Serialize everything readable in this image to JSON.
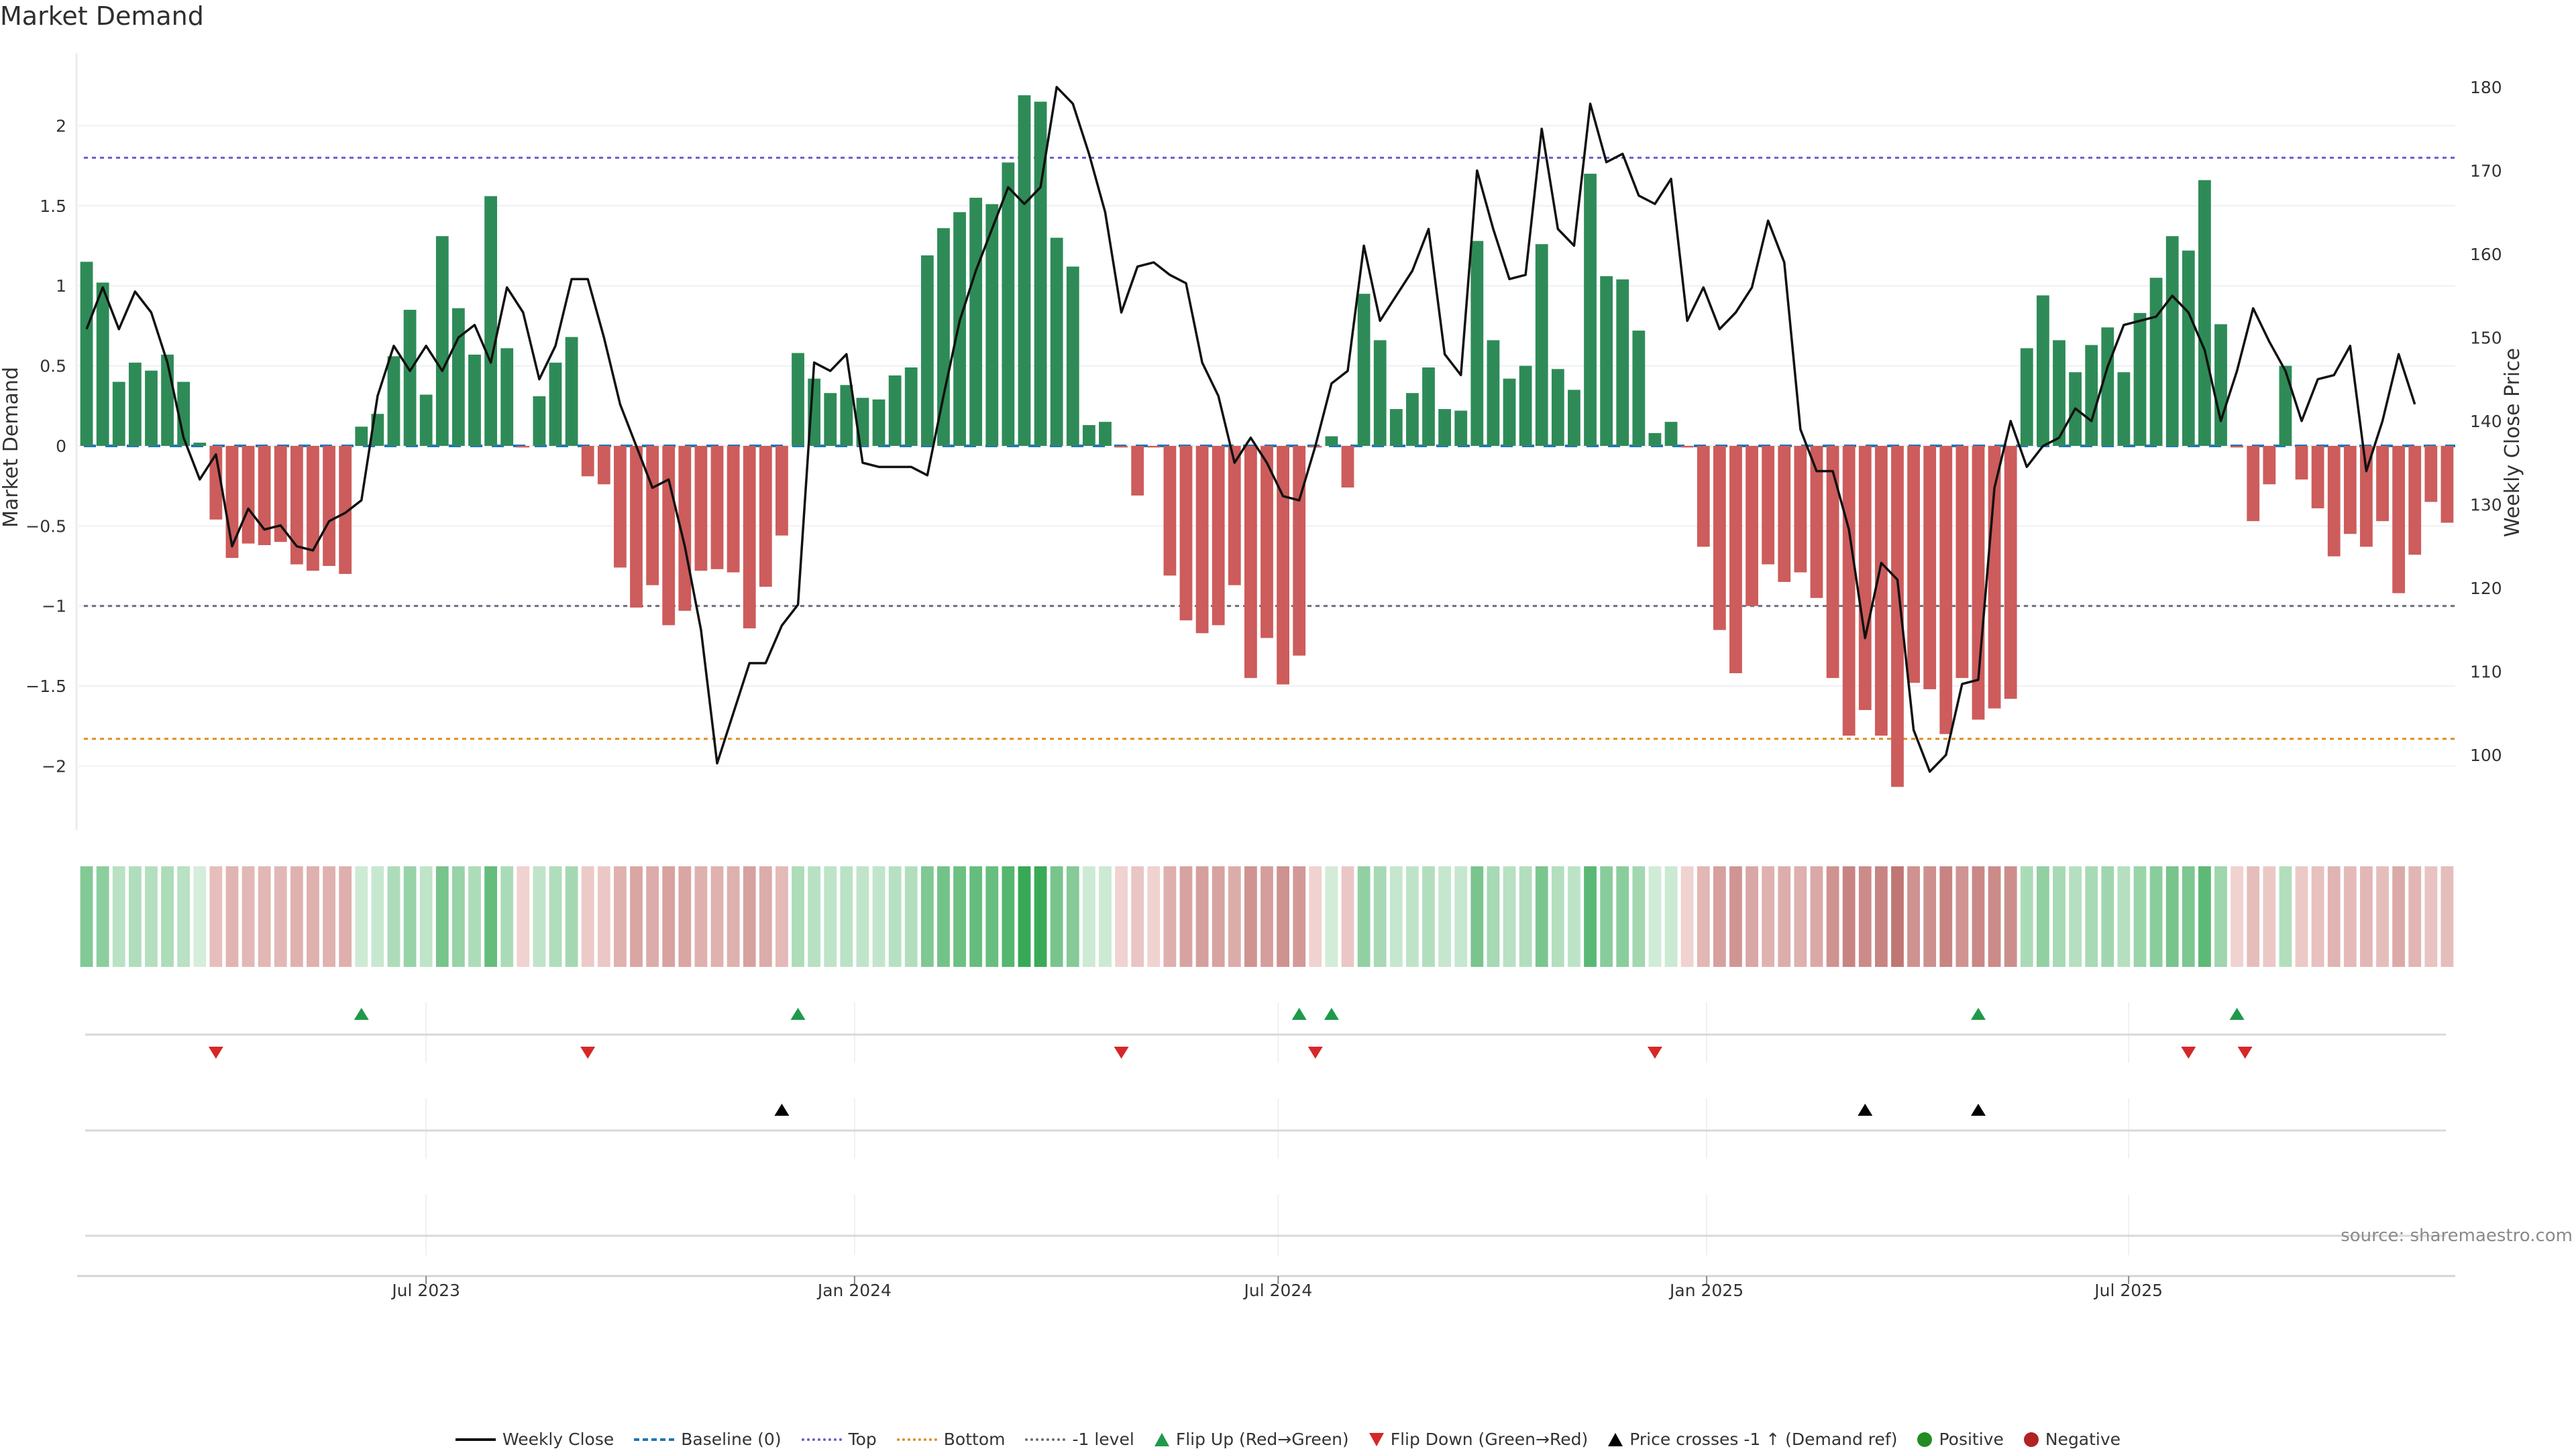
{
  "title": "Market Demand",
  "source": "source: sharemaestro.com",
  "colors": {
    "positive_bar": "#2e8b57",
    "negative_bar": "#cd5c5c",
    "price_line": "#111111",
    "baseline": "#1f77b4",
    "top": "#6a5acd",
    "bottom": "#e08a1e",
    "minus_one": "#6b6b7b",
    "flip_up": "#1f9a4a",
    "flip_down": "#d62728",
    "cross": "#000000",
    "positive_dot": "#228b22",
    "negative_dot": "#b22222"
  },
  "legend": [
    {
      "label": "Weekly Close",
      "kind": "line",
      "color_key": "price_line"
    },
    {
      "label": "Baseline (0)",
      "kind": "dash",
      "color_key": "baseline"
    },
    {
      "label": "Top",
      "kind": "dot",
      "color_key": "top"
    },
    {
      "label": "Bottom",
      "kind": "dot",
      "color_key": "bottom"
    },
    {
      "label": "-1 level",
      "kind": "dot",
      "color_key": "minus_one"
    },
    {
      "label": "Flip Up (Red→Green)",
      "kind": "tri-up",
      "color_key": "flip_up"
    },
    {
      "label": "Flip Down (Green→Red)",
      "kind": "tri-dn",
      "color_key": "flip_down"
    },
    {
      "label": "Price crosses -1 ↑ (Demand ref)",
      "kind": "tri-bk",
      "color_key": "cross"
    },
    {
      "label": "Positive",
      "kind": "circle",
      "color_key": "positive_dot"
    },
    {
      "label": "Negative",
      "kind": "circle",
      "color_key": "negative_dot"
    }
  ],
  "chart_data": {
    "type": "bar",
    "title": "Market Demand",
    "ylabel": "Market Demand",
    "y2label": "Weekly Close Price",
    "ylim": [
      -2.4,
      2.45
    ],
    "y2lim": [
      91,
      184
    ],
    "yticks": [
      "2",
      "1.5",
      "1",
      "0.5",
      "0",
      "−0.5",
      "−1",
      "−1.5",
      "−2"
    ],
    "ytick_values": [
      2,
      1.5,
      1,
      0.5,
      0,
      -0.5,
      -1,
      -1.5,
      -2
    ],
    "y2ticks": [
      "180",
      "170",
      "160",
      "150",
      "140",
      "130",
      "120",
      "110",
      "100"
    ],
    "y2tick_values": [
      180,
      170,
      160,
      150,
      140,
      130,
      120,
      110,
      100
    ],
    "xticks": [
      {
        "label": "Jul 2023",
        "week": 21.5
      },
      {
        "label": "Jan 2024",
        "week": 48
      },
      {
        "label": "Jul 2024",
        "week": 74.2
      },
      {
        "label": "Jan 2025",
        "week": 100.7
      },
      {
        "label": "Jul 2025",
        "week": 126.8
      }
    ],
    "reference_lines": {
      "baseline": 0,
      "top": 1.8,
      "bottom": -1.83,
      "minus_one": -1
    },
    "demand": [
      1.15,
      1.02,
      0.4,
      0.52,
      0.47,
      0.57,
      0.4,
      0.02,
      -0.46,
      -0.7,
      -0.61,
      -0.62,
      -0.6,
      -0.74,
      -0.78,
      -0.75,
      -0.8,
      0.12,
      0.2,
      0.56,
      0.85,
      0.32,
      1.31,
      0.86,
      0.57,
      1.56,
      0.61,
      -0.01,
      0.31,
      0.52,
      0.68,
      -0.19,
      -0.24,
      -0.76,
      -1.01,
      -0.87,
      -1.12,
      -1.03,
      -0.78,
      -0.77,
      -0.79,
      -1.14,
      -0.88,
      -0.56,
      0.58,
      0.42,
      0.33,
      0.38,
      0.3,
      0.29,
      0.44,
      0.49,
      1.19,
      1.36,
      1.46,
      1.55,
      1.51,
      1.77,
      2.19,
      2.15,
      1.3,
      1.12,
      0.13,
      0.15,
      -0.01,
      -0.31,
      -0.01,
      -0.81,
      -1.09,
      -1.17,
      -1.12,
      -0.87,
      -1.45,
      -1.2,
      -1.49,
      -1.31,
      -0.01,
      0.06,
      -0.26,
      0.95,
      0.66,
      0.23,
      0.33,
      0.49,
      0.23,
      0.22,
      1.28,
      0.66,
      0.42,
      0.5,
      1.26,
      0.48,
      0.35,
      1.7,
      1.06,
      1.04,
      0.72,
      0.08,
      0.15,
      -0.01,
      -0.63,
      -1.15,
      -1.42,
      -1.0,
      -0.74,
      -0.85,
      -0.79,
      -0.95,
      -1.45,
      -1.81,
      -1.65,
      -1.81,
      -2.13,
      -1.48,
      -1.52,
      -1.8,
      -1.45,
      -1.71,
      -1.64,
      -1.58,
      0.61,
      0.94,
      0.66,
      0.46,
      0.63,
      0.74,
      0.46,
      0.83,
      1.05,
      1.31,
      1.22,
      1.66,
      0.76,
      -0.01,
      -0.47,
      -0.24,
      0.5,
      -0.21,
      -0.39,
      -0.69,
      -0.55,
      -0.63,
      -0.47,
      -0.92,
      -0.68,
      -0.35,
      -0.48
    ],
    "weekly_close": [
      151,
      156,
      151,
      155.5,
      153,
      147,
      138,
      133,
      136,
      125,
      129.5,
      127,
      127.5,
      125,
      124.5,
      128,
      129,
      130.5,
      143,
      149,
      146,
      149,
      146,
      150,
      151.5,
      147,
      156,
      153,
      145,
      149,
      157,
      157,
      150,
      142,
      137,
      132,
      133,
      125,
      115,
      99,
      105,
      111,
      111,
      115.5,
      118,
      147,
      146,
      148,
      135,
      134.5,
      134.5,
      134.5,
      133.5,
      143,
      152,
      158,
      163,
      168,
      166,
      168,
      180,
      178,
      172,
      165,
      153,
      158.5,
      159,
      157.5,
      156.5,
      147,
      143,
      135,
      138,
      135,
      131,
      130.5,
      137,
      144.5,
      146,
      161,
      152,
      155,
      158,
      163,
      148,
      145.5,
      170,
      163,
      157,
      157.5,
      175,
      163,
      161,
      178,
      171,
      172,
      167,
      166,
      169,
      152,
      156,
      151,
      153,
      156,
      164,
      159,
      139,
      134,
      134,
      127,
      114,
      123,
      121,
      103,
      98,
      100,
      108.5,
      109,
      132,
      140,
      134.5,
      137,
      138,
      141.5,
      140,
      146.5,
      151.5,
      152,
      152.5,
      155,
      153,
      148.5,
      140,
      146,
      153.5,
      149.5,
      146,
      140,
      145,
      145.5,
      149,
      134,
      140,
      148,
      142
    ],
    "strip_intensity_note": "color strip mirrors demand sign and magnitude per week",
    "flip_up_weeks": [
      17,
      44,
      75,
      77,
      117,
      133
    ],
    "flip_down_weeks": [
      8,
      31,
      64,
      76,
      97,
      130,
      133.5
    ],
    "price_cross_weeks": [
      43,
      110,
      117
    ]
  }
}
